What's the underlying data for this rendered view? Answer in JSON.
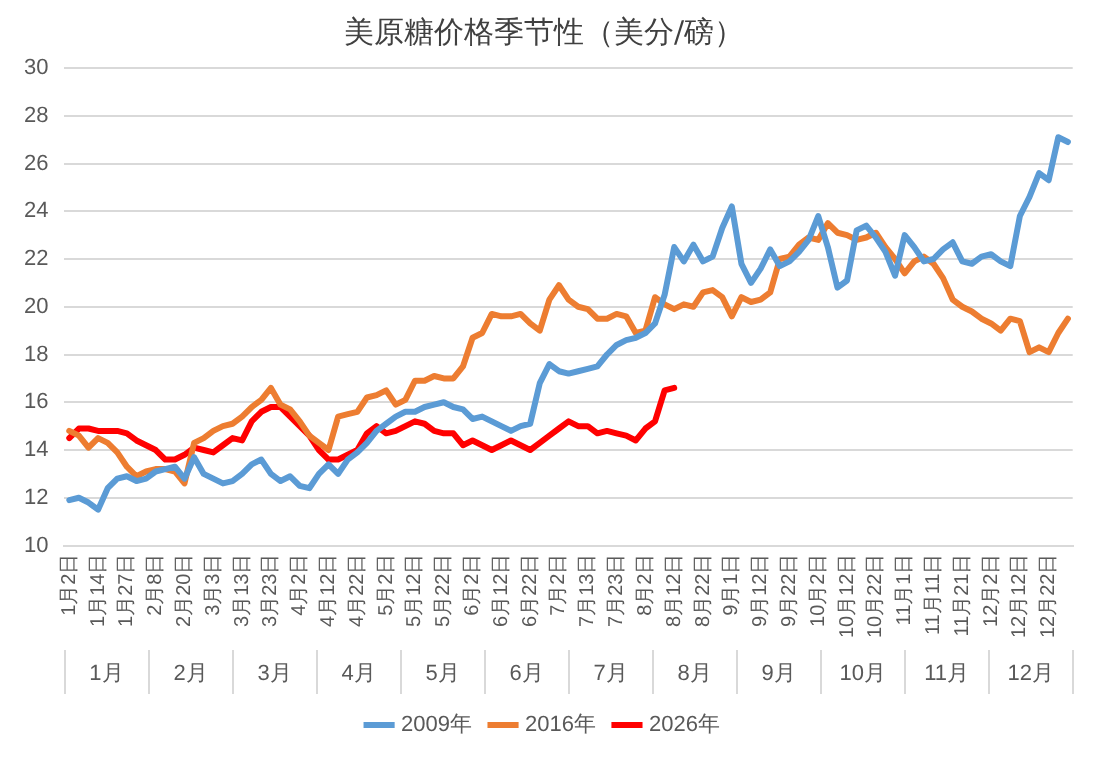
{
  "chart_data": {
    "type": "line",
    "title": "美原糖价格季节性（美分/磅）",
    "categories": [
      "1月2日",
      null,
      null,
      "1月14日",
      null,
      null,
      "1月27日",
      null,
      null,
      "2月8日",
      null,
      null,
      "2月20日",
      null,
      null,
      "3月3日",
      null,
      null,
      "3月13日",
      null,
      null,
      "3月23日",
      null,
      null,
      "4月2日",
      null,
      null,
      "4月12日",
      null,
      null,
      "4月22日",
      null,
      null,
      "5月2日",
      null,
      null,
      "5月12日",
      null,
      null,
      "5月22日",
      null,
      null,
      "6月2日",
      null,
      null,
      "6月12日",
      null,
      null,
      "6月22日",
      null,
      null,
      "7月2日",
      null,
      null,
      "7月13日",
      null,
      null,
      "7月23日",
      null,
      null,
      "8月2日",
      null,
      null,
      "8月12日",
      null,
      null,
      "8月22日",
      null,
      null,
      "9月1日",
      null,
      null,
      "9月12日",
      null,
      null,
      "9月22日",
      null,
      null,
      "10月2日",
      null,
      null,
      "10月12日",
      null,
      null,
      "10月22日",
      null,
      null,
      "11月1日",
      null,
      null,
      "11月11日",
      null,
      null,
      "11月21日",
      null,
      null,
      "12月2日",
      null,
      null,
      "12月12日",
      null,
      null,
      "12月22日",
      null,
      null
    ],
    "series": [
      {
        "name": "2009年",
        "color": "#5b9bd5",
        "values": [
          11.9,
          12.0,
          11.8,
          11.5,
          12.4,
          12.8,
          12.9,
          12.7,
          12.8,
          13.1,
          13.2,
          13.3,
          12.8,
          13.7,
          13.0,
          12.8,
          12.6,
          12.7,
          13.0,
          13.4,
          13.6,
          13.0,
          12.7,
          12.9,
          12.5,
          12.4,
          13.0,
          13.4,
          13.0,
          13.6,
          13.9,
          14.3,
          14.8,
          15.1,
          15.4,
          15.6,
          15.6,
          15.8,
          15.9,
          16.0,
          15.8,
          15.7,
          15.3,
          15.4,
          15.2,
          15.0,
          14.8,
          15.0,
          15.1,
          16.8,
          17.6,
          17.3,
          17.2,
          17.3,
          17.4,
          17.5,
          18.0,
          18.4,
          18.6,
          18.7,
          18.9,
          19.3,
          20.5,
          22.5,
          21.9,
          22.6,
          21.9,
          22.1,
          23.3,
          24.2,
          21.8,
          21.0,
          21.6,
          22.4,
          21.7,
          21.9,
          22.3,
          22.8,
          23.8,
          22.5,
          20.8,
          21.1,
          23.2,
          23.4,
          22.9,
          22.3,
          21.3,
          23.0,
          22.5,
          21.9,
          22.0,
          22.4,
          22.7,
          21.9,
          21.8,
          22.1,
          22.2,
          21.9,
          21.7,
          23.8,
          24.6,
          25.6,
          25.3,
          27.1,
          26.9
        ]
      },
      {
        "name": "2016年",
        "color": "#ed7d31",
        "values": [
          14.8,
          14.6,
          14.1,
          14.5,
          14.3,
          13.9,
          13.3,
          12.9,
          13.1,
          13.2,
          13.2,
          13.1,
          12.6,
          14.3,
          14.5,
          14.8,
          15.0,
          15.1,
          15.4,
          15.8,
          16.1,
          16.6,
          15.9,
          15.7,
          15.2,
          14.6,
          14.3,
          14.0,
          15.4,
          15.5,
          15.6,
          16.2,
          16.3,
          16.5,
          15.9,
          16.1,
          16.9,
          16.9,
          17.1,
          17.0,
          17.0,
          17.5,
          18.7,
          18.9,
          19.7,
          19.6,
          19.6,
          19.7,
          19.3,
          19.0,
          20.3,
          20.9,
          20.3,
          20.0,
          19.9,
          19.5,
          19.5,
          19.7,
          19.6,
          18.9,
          19.0,
          20.4,
          20.1,
          19.9,
          20.1,
          20.0,
          20.6,
          20.7,
          20.4,
          19.6,
          20.4,
          20.2,
          20.3,
          20.6,
          22.0,
          22.1,
          22.6,
          22.9,
          22.8,
          23.5,
          23.1,
          23.0,
          22.8,
          22.9,
          23.1,
          22.5,
          22.0,
          21.4,
          21.9,
          22.1,
          21.8,
          21.2,
          20.3,
          20.0,
          19.8,
          19.5,
          19.3,
          19.0,
          19.5,
          19.4,
          18.1,
          18.3,
          18.1,
          18.9,
          19.5
        ]
      },
      {
        "name": "2026年",
        "color": "#ff0000",
        "values": [
          14.5,
          14.9,
          14.9,
          14.8,
          14.8,
          14.8,
          14.7,
          14.4,
          14.2,
          14.0,
          13.6,
          13.6,
          13.8,
          14.1,
          14.0,
          13.9,
          14.2,
          14.5,
          14.4,
          15.2,
          15.6,
          15.8,
          15.8,
          15.4,
          15.0,
          14.6,
          14.0,
          13.6,
          13.6,
          13.8,
          14.0,
          14.7,
          15.0,
          14.7,
          14.8,
          15.0,
          15.2,
          15.1,
          14.8,
          14.7,
          14.7,
          14.2,
          14.4,
          14.2,
          14.0,
          14.2,
          14.4,
          14.2,
          14.0,
          14.3,
          14.6,
          14.9,
          15.2,
          15.0,
          15.0,
          14.7,
          14.8,
          14.7,
          14.6,
          14.4,
          14.9,
          15.2,
          16.5,
          16.6,
          null,
          null,
          null,
          null,
          null,
          null,
          null,
          null,
          null,
          null,
          null,
          null,
          null,
          null,
          null,
          null,
          null,
          null,
          null,
          null,
          null,
          null,
          null,
          null,
          null,
          null,
          null,
          null,
          null,
          null,
          null,
          null,
          null,
          null,
          null,
          null,
          null,
          null,
          null,
          null,
          null
        ]
      }
    ],
    "ylim": [
      10,
      30
    ],
    "yticks": [
      10,
      12,
      14,
      16,
      18,
      20,
      22,
      24,
      26,
      28,
      30
    ],
    "grid": "y",
    "legend": "bottom",
    "marker": "none",
    "line_style": "solid",
    "annotations": [
      "1月",
      "2月",
      "3月",
      "4月",
      "5月",
      "6月",
      "7月",
      "8月",
      "9月",
      "10月",
      "11月",
      "12月"
    ]
  }
}
